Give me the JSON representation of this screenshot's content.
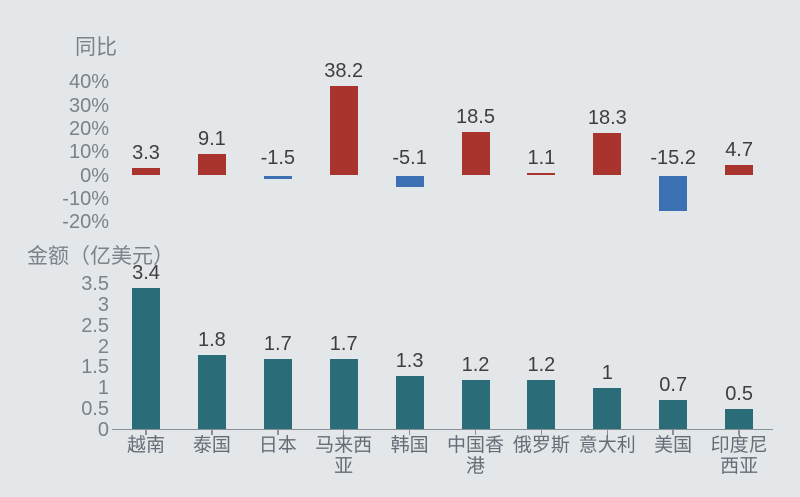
{
  "background_color": "#e4e7e9",
  "chart_data": [
    {
      "type": "bar",
      "title": "同比",
      "categories": [
        "越南",
        "泰国",
        "日本",
        "马来西亚",
        "韩国",
        "中国香港",
        "俄罗斯",
        "意大利",
        "美国",
        "印度尼西亚"
      ],
      "values": [
        3.3,
        9.1,
        -1.5,
        38.2,
        -5.1,
        18.5,
        1.1,
        18.3,
        -15.2,
        4.7
      ],
      "value_labels": [
        "3.3",
        "9.1",
        "-1.5",
        "38.2",
        "-5.1",
        "18.5",
        "1.1",
        "18.3",
        "-15.2",
        "4.7"
      ],
      "yticks": [
        {
          "label": "40%",
          "value": 40
        },
        {
          "label": "30%",
          "value": 30
        },
        {
          "label": "20%",
          "value": 20
        },
        {
          "label": "10%",
          "value": 10
        },
        {
          "label": "0%",
          "value": 0
        },
        {
          "label": "-10%",
          "value": -10
        },
        {
          "label": "-20%",
          "value": -20
        }
      ],
      "ylim": [
        -20,
        40
      ],
      "grid": false,
      "legend": null,
      "x_axis_labels_shown": false,
      "positive_color": "#a9332d",
      "negative_color": "#3b70b3",
      "value_label_color": "#3c3e41",
      "axis_text_color": "#7b828c"
    },
    {
      "type": "bar",
      "title": "金额（亿美元）",
      "categories": [
        "越南",
        "泰国",
        "日本",
        "马来西亚",
        "韩国",
        "中国香港",
        "俄罗斯",
        "意大利",
        "美国",
        "印度尼西亚"
      ],
      "category_label_lines": [
        [
          "越南"
        ],
        [
          "泰国"
        ],
        [
          "日本"
        ],
        [
          "马来西",
          "亚"
        ],
        [
          "韩国"
        ],
        [
          "中国香",
          "港"
        ],
        [
          "俄罗斯"
        ],
        [
          "意大利"
        ],
        [
          "美国"
        ],
        [
          "印度尼",
          "西亚"
        ]
      ],
      "values": [
        3.4,
        1.8,
        1.7,
        1.7,
        1.3,
        1.2,
        1.2,
        1,
        0.7,
        0.5
      ],
      "value_labels": [
        "3.4",
        "1.8",
        "1.7",
        "1.7",
        "1.3",
        "1.2",
        "1.2",
        "1",
        "0.7",
        "0.5"
      ],
      "yticks": [
        {
          "label": "3.5",
          "value": 3.5
        },
        {
          "label": "3",
          "value": 3
        },
        {
          "label": "2.5",
          "value": 2.5
        },
        {
          "label": "2",
          "value": 2
        },
        {
          "label": "1.5",
          "value": 1.5
        },
        {
          "label": "1",
          "value": 1
        },
        {
          "label": "0.5",
          "value": 0.5
        },
        {
          "label": "0",
          "value": 0
        }
      ],
      "ylim": [
        0,
        3.5
      ],
      "grid": false,
      "legend": null,
      "bar_color": "#2b6c79",
      "value_label_color": "#3c3e41",
      "axis_text_color": "#7b828c",
      "category_text_color": "#676d77",
      "axis_line_color": "#8a9097"
    }
  ]
}
